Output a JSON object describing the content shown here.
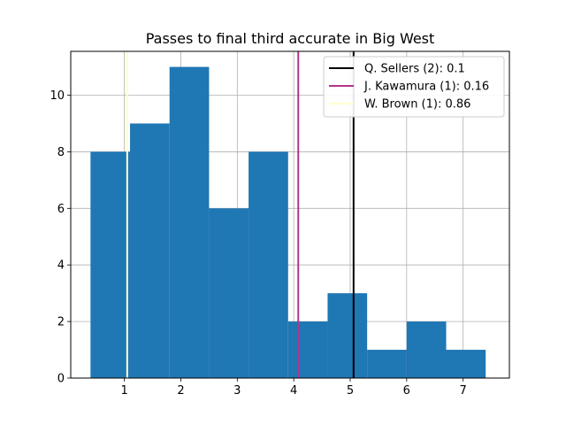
{
  "chart_data": {
    "type": "bar",
    "title": "Passes to final third accurate in Big West",
    "xlabel": "",
    "ylabel": "",
    "xlim": [
      0.05,
      7.82
    ],
    "ylim": [
      0,
      11.55
    ],
    "grid": true,
    "legend_position": "top-right",
    "x_ticks": [
      1,
      2,
      3,
      4,
      5,
      6,
      7
    ],
    "y_ticks": [
      0,
      2,
      4,
      6,
      8,
      10
    ],
    "bin_edges": [
      0.4,
      1.1,
      1.8,
      2.5,
      3.2,
      3.9,
      4.6,
      5.3,
      6.0,
      6.7,
      7.4
    ],
    "counts": [
      8,
      9,
      11,
      6,
      8,
      2,
      3,
      1,
      2,
      1
    ],
    "bar_color": "#1f77b4",
    "reference_lines": [
      {
        "label": "Q. Sellers (2): 0.1",
        "x": 5.06,
        "color": "#000000"
      },
      {
        "label": "J. Kawamura (1): 0.16",
        "x": 4.08,
        "color": "#b5338a"
      },
      {
        "label": "W. Brown (1): 0.86",
        "x": 1.05,
        "color": "#ffffcc"
      }
    ]
  }
}
